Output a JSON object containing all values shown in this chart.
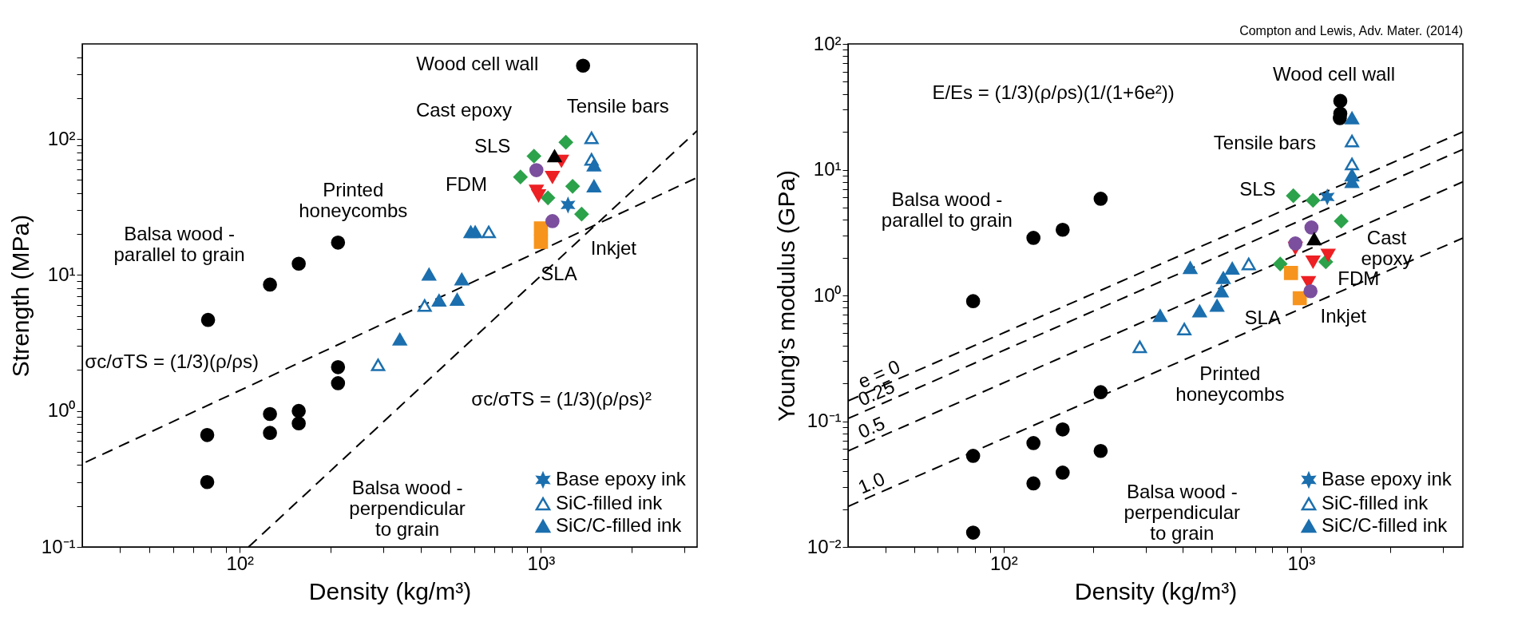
{
  "chart_data": [
    {
      "type": "scatter",
      "xlabel": "Density (kg/m³)",
      "ylabel": "Strength (MPa)",
      "log": "xy",
      "grid": false,
      "legend": "bottom right",
      "xlim": [
        30,
        3300
      ],
      "ylim": [
        0.1,
        500
      ],
      "xticks": [
        {
          "value": 40,
          "label": null
        },
        {
          "value": 50,
          "label": null
        },
        {
          "value": 60,
          "label": null
        },
        {
          "value": 70,
          "label": null
        },
        {
          "value": 80,
          "label": null
        },
        {
          "value": 90,
          "label": null
        },
        {
          "value": 100,
          "label": "10²"
        },
        {
          "value": 200,
          "label": null
        },
        {
          "value": 300,
          "label": null
        },
        {
          "value": 400,
          "label": null
        },
        {
          "value": 500,
          "label": null
        },
        {
          "value": 600,
          "label": null
        },
        {
          "value": 700,
          "label": null
        },
        {
          "value": 800,
          "label": null
        },
        {
          "value": 900,
          "label": null
        },
        {
          "value": 1000,
          "label": "10³"
        },
        {
          "value": 2000,
          "label": null
        },
        {
          "value": 3000,
          "label": null
        }
      ],
      "yticks": [
        {
          "value": 0.1,
          "label": "10⁻¹"
        },
        {
          "value": 0.2,
          "label": null
        },
        {
          "value": 0.3,
          "label": null
        },
        {
          "value": 0.4,
          "label": null
        },
        {
          "value": 0.5,
          "label": null
        },
        {
          "value": 0.6,
          "label": null
        },
        {
          "value": 0.7,
          "label": null
        },
        {
          "value": 0.8,
          "label": null
        },
        {
          "value": 0.9,
          "label": null
        },
        {
          "value": 1,
          "label": "10⁰"
        },
        {
          "value": 2,
          "label": null
        },
        {
          "value": 3,
          "label": null
        },
        {
          "value": 4,
          "label": null
        },
        {
          "value": 5,
          "label": null
        },
        {
          "value": 6,
          "label": null
        },
        {
          "value": 7,
          "label": null
        },
        {
          "value": 8,
          "label": null
        },
        {
          "value": 9,
          "label": null
        },
        {
          "value": 10,
          "label": "10¹"
        },
        {
          "value": 20,
          "label": null
        },
        {
          "value": 30,
          "label": null
        },
        {
          "value": 40,
          "label": null
        },
        {
          "value": 50,
          "label": null
        },
        {
          "value": 60,
          "label": null
        },
        {
          "value": 70,
          "label": null
        },
        {
          "value": 80,
          "label": null
        },
        {
          "value": 90,
          "label": null
        },
        {
          "value": 100,
          "label": "10²"
        },
        {
          "value": 200,
          "label": null
        },
        {
          "value": 300,
          "label": null
        },
        {
          "value": 400,
          "label": null
        }
      ],
      "series": [
        {
          "type": "line",
          "line_style": "dashed",
          "color": "#000000",
          "x": [
            30.8,
            3300
          ],
          "values": [
            0.42,
            52
          ]
        },
        {
          "type": "line",
          "line_style": "dashed",
          "color": "#000000",
          "x": [
            107,
            3300
          ],
          "values": [
            0.1,
            115
          ]
        },
        {
          "type": "scatter",
          "marker": "circle",
          "color": "#000000",
          "x": [
            1380
          ],
          "values": [
            346
          ]
        },
        {
          "type": "scatter",
          "marker": "circle",
          "color": "#000000",
          "x": [
            78.5,
            126,
            157,
            212
          ],
          "values": [
            4.67,
            8.5,
            12.1,
            17.3
          ]
        },
        {
          "type": "scatter",
          "marker": "circle",
          "color": "#000000",
          "x": [
            78,
            78,
            126,
            126,
            157,
            157,
            212,
            212
          ],
          "values": [
            0.665,
            0.3,
            0.95,
            0.69,
            1.0,
            0.81,
            2.1,
            1.6
          ]
        },
        {
          "type": "scatter",
          "marker": "diamond",
          "color": "#2ca24b",
          "x": [
            855,
            1210,
            1274,
            1365,
            948,
            1055
          ],
          "values": [
            52.5,
            94.6,
            44.9,
            28,
            74.8,
            36.9
          ]
        },
        {
          "type": "scatter",
          "marker": "square",
          "color": "#f7941d",
          "x": [
            1000,
            1000
          ],
          "values": [
            17.5,
            22
          ]
        },
        {
          "type": "scatter",
          "marker": "triangle-down",
          "color": "#ed2024",
          "x": [
            982,
            1092,
            1170,
            966
          ],
          "values": [
            38.4,
            52.5,
            69,
            41.5
          ]
        },
        {
          "type": "scatter",
          "marker": "circle",
          "color": "#7b4f9e",
          "x": [
            1092,
            966
          ],
          "values": [
            24.9,
            59
          ]
        },
        {
          "type": "scatter",
          "name": "Base epoxy ink",
          "marker": "cross",
          "color": "#1b6fae",
          "x": [
            1230
          ],
          "values": [
            32.7
          ]
        },
        {
          "type": "scatter",
          "name": "SiC-filled ink",
          "marker": "triangle-open",
          "color": "#1b6fae",
          "x": [
            288,
            411,
            671,
            1472,
            1472
          ],
          "values": [
            2.18,
            5.96,
            20.7,
            102,
            70.8
          ]
        },
        {
          "type": "scatter",
          "name": "SiC/C-filled ink",
          "marker": "triangle",
          "color": "#1b6fae",
          "x": [
            340,
            425,
            459,
            527,
            546,
            585,
            605,
            1500,
            1500
          ],
          "values": [
            3.36,
            10.1,
            6.5,
            6.6,
            9.3,
            20.7,
            20.7,
            64,
            45
          ]
        },
        {
          "type": "scatter",
          "marker": "triangle",
          "color": "#000000",
          "x": [
            1110
          ],
          "values": [
            74.8
          ]
        }
      ],
      "annotations": [
        "Wood cell wall",
        "Cast epoxy",
        "Tensile bars",
        "SLS",
        "Printed\nhoneycombs",
        "FDM",
        "Inkjet",
        "SLA",
        "Balsa wood -\nparallel to grain",
        "Balsa wood -\nperpendicular\nto grain",
        "σc/σTS = (1/3)(ρ/ρs)",
        "σc/σTS = (1/3)(ρ/ρs)²"
      ]
    },
    {
      "type": "scatter",
      "xlabel": "Density (kg/m³)",
      "ylabel": "Young’s modulus (GPa)",
      "log": "xy",
      "grid": false,
      "legend": "bottom right",
      "xlim": [
        30,
        3500
      ],
      "ylim": [
        0.01,
        100
      ],
      "xticks": [
        {
          "value": 40,
          "label": null
        },
        {
          "value": 50,
          "label": null
        },
        {
          "value": 60,
          "label": null
        },
        {
          "value": 70,
          "label": null
        },
        {
          "value": 80,
          "label": null
        },
        {
          "value": 90,
          "label": null
        },
        {
          "value": 100,
          "label": "10²"
        },
        {
          "value": 200,
          "label": null
        },
        {
          "value": 300,
          "label": null
        },
        {
          "value": 400,
          "label": null
        },
        {
          "value": 500,
          "label": null
        },
        {
          "value": 600,
          "label": null
        },
        {
          "value": 700,
          "label": null
        },
        {
          "value": 800,
          "label": null
        },
        {
          "value": 900,
          "label": null
        },
        {
          "value": 1000,
          "label": "10³"
        },
        {
          "value": 2000,
          "label": null
        },
        {
          "value": 3000,
          "label": null
        }
      ],
      "yticks": [
        {
          "value": 0.01,
          "label": "10⁻²"
        },
        {
          "value": 0.02,
          "label": null
        },
        {
          "value": 0.03,
          "label": null
        },
        {
          "value": 0.04,
          "label": null
        },
        {
          "value": 0.05,
          "label": null
        },
        {
          "value": 0.06,
          "label": null
        },
        {
          "value": 0.07,
          "label": null
        },
        {
          "value": 0.08,
          "label": null
        },
        {
          "value": 0.09,
          "label": null
        },
        {
          "value": 0.1,
          "label": "10⁻¹"
        },
        {
          "value": 0.2,
          "label": null
        },
        {
          "value": 0.3,
          "label": null
        },
        {
          "value": 0.4,
          "label": null
        },
        {
          "value": 0.5,
          "label": null
        },
        {
          "value": 0.6,
          "label": null
        },
        {
          "value": 0.7,
          "label": null
        },
        {
          "value": 0.8,
          "label": null
        },
        {
          "value": 0.9,
          "label": null
        },
        {
          "value": 1,
          "label": "10⁰"
        },
        {
          "value": 2,
          "label": null
        },
        {
          "value": 3,
          "label": null
        },
        {
          "value": 4,
          "label": null
        },
        {
          "value": 5,
          "label": null
        },
        {
          "value": 6,
          "label": null
        },
        {
          "value": 7,
          "label": null
        },
        {
          "value": 8,
          "label": null
        },
        {
          "value": 9,
          "label": null
        },
        {
          "value": 10,
          "label": "10¹"
        },
        {
          "value": 20,
          "label": null
        },
        {
          "value": 30,
          "label": null
        },
        {
          "value": 40,
          "label": null
        },
        {
          "value": 50,
          "label": null
        },
        {
          "value": 60,
          "label": null
        },
        {
          "value": 70,
          "label": null
        },
        {
          "value": 80,
          "label": null
        },
        {
          "value": 90,
          "label": null
        },
        {
          "value": 100,
          "label": "10²"
        }
      ],
      "series": [
        {
          "type": "line",
          "name": "e = 0",
          "line_style": "dashed",
          "color": "#000000",
          "x": [
            30,
            3500
          ],
          "values": [
            0.145,
            20
          ]
        },
        {
          "type": "line",
          "name": "0.25",
          "line_style": "dashed",
          "color": "#000000",
          "x": [
            30,
            3500
          ],
          "values": [
            0.105,
            14.5
          ]
        },
        {
          "type": "line",
          "name": "0.5",
          "line_style": "dashed",
          "color": "#000000",
          "x": [
            30,
            3500
          ],
          "values": [
            0.058,
            8
          ]
        },
        {
          "type": "line",
          "name": "1.0",
          "line_style": "dashed",
          "color": "#000000",
          "x": [
            30,
            3500
          ],
          "values": [
            0.021,
            2.86
          ]
        },
        {
          "type": "scatter",
          "marker": "circle",
          "color": "#000000",
          "x": [
            1355,
            1355,
            1350
          ],
          "values": [
            35.2,
            27.9,
            25.7
          ]
        },
        {
          "type": "scatter",
          "marker": "circle",
          "color": "#000000",
          "x": [
            79,
            126,
            158,
            212
          ],
          "values": [
            0.9,
            2.87,
            3.33,
            5.87
          ]
        },
        {
          "type": "scatter",
          "marker": "circle",
          "color": "#000000",
          "x": [
            79,
            79,
            126,
            126,
            158,
            158,
            212,
            212
          ],
          "values": [
            0.053,
            0.013,
            0.067,
            0.032,
            0.086,
            0.039,
            0.17,
            0.058
          ]
        },
        {
          "type": "scatter",
          "marker": "diamond",
          "color": "#2ca24b",
          "x": [
            942,
            1097,
            1365,
            851,
            1211
          ],
          "values": [
            6.2,
            5.7,
            3.9,
            1.78,
            1.85
          ]
        },
        {
          "type": "scatter",
          "marker": "square",
          "color": "#f7941d",
          "x": [
            925,
            990
          ],
          "values": [
            1.51,
            0.95
          ]
        },
        {
          "type": "scatter",
          "marker": "triangle-down",
          "color": "#ed2024",
          "x": [
            957,
            1097,
            1233,
            1059
          ],
          "values": [
            2.38,
            1.85,
            2.1,
            1.27
          ]
        },
        {
          "type": "scatter",
          "marker": "circle",
          "color": "#7b4f9e",
          "x": [
            1084,
            1076,
            957
          ],
          "values": [
            3.47,
            1.08,
            2.59
          ]
        },
        {
          "type": "scatter",
          "name": "Base epoxy ink",
          "marker": "cross",
          "color": "#1b6fae",
          "x": [
            1225
          ],
          "values": [
            6.07
          ]
        },
        {
          "type": "scatter",
          "name": "SiC-filled ink",
          "marker": "triangle-open",
          "color": "#1b6fae",
          "x": [
            287,
            405,
            667,
            1483,
            1483
          ],
          "values": [
            0.39,
            0.54,
            1.78,
            16.9,
            11.1
          ]
        },
        {
          "type": "scatter",
          "name": "SiC/C-filled ink",
          "marker": "triangle",
          "color": "#1b6fae",
          "x": [
            336,
            424,
            456,
            522,
            540,
            548,
            587,
            1483,
            1483,
            1483
          ],
          "values": [
            0.69,
            1.66,
            0.75,
            0.83,
            1.08,
            1.38,
            1.64,
            25.7,
            9.05,
            8.0
          ]
        },
        {
          "type": "scatter",
          "marker": "triangle",
          "color": "#000000",
          "x": [
            1107
          ],
          "values": [
            2.81
          ]
        }
      ],
      "annotations": [
        "Compton and Lewis, Adv. Mater. (2014)",
        "Wood cell wall",
        "Tensile bars",
        "SLS",
        "Cast\nepoxy",
        "FDM",
        "Inkjet",
        "SLA",
        "Balsa wood -\nparallel to grain",
        "Printed\nhoneycombs",
        "Balsa wood -\nperpendicular\nto grain",
        "E/Es = (1/3)(ρ/ρs)(1/(1+6e²))"
      ]
    }
  ]
}
